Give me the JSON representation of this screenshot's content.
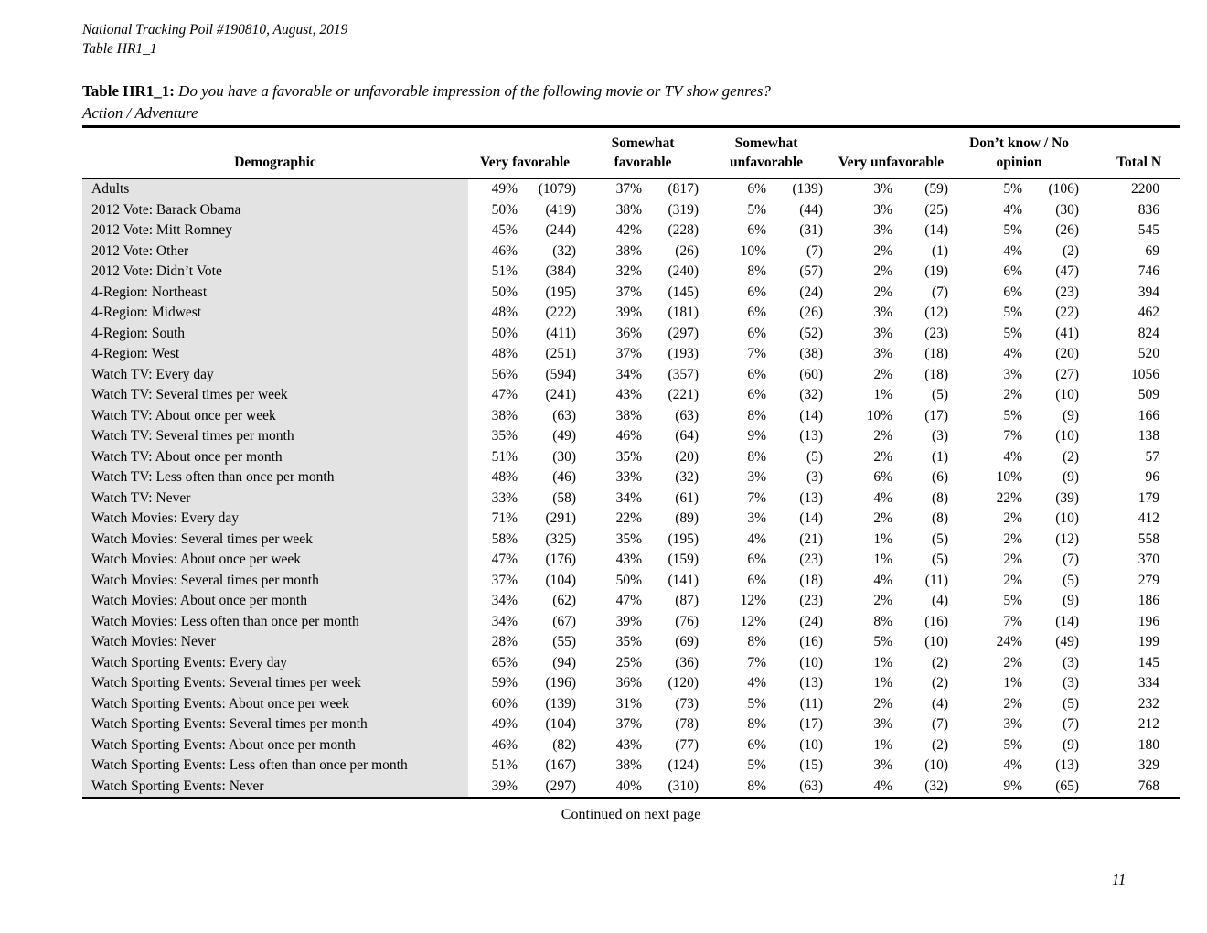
{
  "page": {
    "header_line1": "National Tracking Poll #190810, August, 2019",
    "header_line2": "Table HR1_1",
    "title_label": "Table HR1_1:",
    "title_question": "Do you have a favorable or unfavorable impression of the following movie or TV show genres?",
    "title_sub": "Action / Adventure",
    "footer_note": "Continued on next page",
    "page_number": "11"
  },
  "table": {
    "columns": [
      {
        "label": "Demographic"
      },
      {
        "label": "Very favorable"
      },
      {
        "label": "Somewhat favorable"
      },
      {
        "label": "Somewhat unfavorable"
      },
      {
        "label": "Very unfavorable"
      },
      {
        "label": "Don’t know / No opinion"
      },
      {
        "label": "Total N"
      }
    ],
    "rows": [
      {
        "label": "Adults",
        "values": [
          "49%",
          "(1079)",
          "37%",
          "(817)",
          "6%",
          "(139)",
          "3%",
          "(59)",
          "5%",
          "(106)",
          "2200"
        ]
      },
      {
        "label": "2012 Vote: Barack Obama",
        "values": [
          "50%",
          "(419)",
          "38%",
          "(319)",
          "5%",
          "(44)",
          "3%",
          "(25)",
          "4%",
          "(30)",
          "836"
        ]
      },
      {
        "label": "2012 Vote: Mitt Romney",
        "values": [
          "45%",
          "(244)",
          "42%",
          "(228)",
          "6%",
          "(31)",
          "3%",
          "(14)",
          "5%",
          "(26)",
          "545"
        ]
      },
      {
        "label": "2012 Vote: Other",
        "values": [
          "46%",
          "(32)",
          "38%",
          "(26)",
          "10%",
          "(7)",
          "2%",
          "(1)",
          "4%",
          "(2)",
          "69"
        ]
      },
      {
        "label": "2012 Vote: Didn’t Vote",
        "values": [
          "51%",
          "(384)",
          "32%",
          "(240)",
          "8%",
          "(57)",
          "2%",
          "(19)",
          "6%",
          "(47)",
          "746"
        ]
      },
      {
        "label": "4-Region: Northeast",
        "values": [
          "50%",
          "(195)",
          "37%",
          "(145)",
          "6%",
          "(24)",
          "2%",
          "(7)",
          "6%",
          "(23)",
          "394"
        ]
      },
      {
        "label": "4-Region: Midwest",
        "values": [
          "48%",
          "(222)",
          "39%",
          "(181)",
          "6%",
          "(26)",
          "3%",
          "(12)",
          "5%",
          "(22)",
          "462"
        ]
      },
      {
        "label": "4-Region: South",
        "values": [
          "50%",
          "(411)",
          "36%",
          "(297)",
          "6%",
          "(52)",
          "3%",
          "(23)",
          "5%",
          "(41)",
          "824"
        ]
      },
      {
        "label": "4-Region: West",
        "values": [
          "48%",
          "(251)",
          "37%",
          "(193)",
          "7%",
          "(38)",
          "3%",
          "(18)",
          "4%",
          "(20)",
          "520"
        ]
      },
      {
        "label": "Watch TV: Every day",
        "values": [
          "56%",
          "(594)",
          "34%",
          "(357)",
          "6%",
          "(60)",
          "2%",
          "(18)",
          "3%",
          "(27)",
          "1056"
        ]
      },
      {
        "label": "Watch TV: Several times per week",
        "values": [
          "47%",
          "(241)",
          "43%",
          "(221)",
          "6%",
          "(32)",
          "1%",
          "(5)",
          "2%",
          "(10)",
          "509"
        ]
      },
      {
        "label": "Watch TV: About once per week",
        "values": [
          "38%",
          "(63)",
          "38%",
          "(63)",
          "8%",
          "(14)",
          "10%",
          "(17)",
          "5%",
          "(9)",
          "166"
        ]
      },
      {
        "label": "Watch TV: Several times per month",
        "values": [
          "35%",
          "(49)",
          "46%",
          "(64)",
          "9%",
          "(13)",
          "2%",
          "(3)",
          "7%",
          "(10)",
          "138"
        ]
      },
      {
        "label": "Watch TV: About once per month",
        "values": [
          "51%",
          "(30)",
          "35%",
          "(20)",
          "8%",
          "(5)",
          "2%",
          "(1)",
          "4%",
          "(2)",
          "57"
        ]
      },
      {
        "label": "Watch TV: Less often than once per month",
        "values": [
          "48%",
          "(46)",
          "33%",
          "(32)",
          "3%",
          "(3)",
          "6%",
          "(6)",
          "10%",
          "(9)",
          "96"
        ]
      },
      {
        "label": "Watch TV: Never",
        "values": [
          "33%",
          "(58)",
          "34%",
          "(61)",
          "7%",
          "(13)",
          "4%",
          "(8)",
          "22%",
          "(39)",
          "179"
        ]
      },
      {
        "label": "Watch Movies: Every day",
        "values": [
          "71%",
          "(291)",
          "22%",
          "(89)",
          "3%",
          "(14)",
          "2%",
          "(8)",
          "2%",
          "(10)",
          "412"
        ]
      },
      {
        "label": "Watch Movies: Several times per week",
        "values": [
          "58%",
          "(325)",
          "35%",
          "(195)",
          "4%",
          "(21)",
          "1%",
          "(5)",
          "2%",
          "(12)",
          "558"
        ]
      },
      {
        "label": "Watch Movies: About once per week",
        "values": [
          "47%",
          "(176)",
          "43%",
          "(159)",
          "6%",
          "(23)",
          "1%",
          "(5)",
          "2%",
          "(7)",
          "370"
        ]
      },
      {
        "label": "Watch Movies: Several times per month",
        "values": [
          "37%",
          "(104)",
          "50%",
          "(141)",
          "6%",
          "(18)",
          "4%",
          "(11)",
          "2%",
          "(5)",
          "279"
        ]
      },
      {
        "label": "Watch Movies: About once per month",
        "values": [
          "34%",
          "(62)",
          "47%",
          "(87)",
          "12%",
          "(23)",
          "2%",
          "(4)",
          "5%",
          "(9)",
          "186"
        ]
      },
      {
        "label": "Watch Movies: Less often than once per month",
        "values": [
          "34%",
          "(67)",
          "39%",
          "(76)",
          "12%",
          "(24)",
          "8%",
          "(16)",
          "7%",
          "(14)",
          "196"
        ]
      },
      {
        "label": "Watch Movies: Never",
        "values": [
          "28%",
          "(55)",
          "35%",
          "(69)",
          "8%",
          "(16)",
          "5%",
          "(10)",
          "24%",
          "(49)",
          "199"
        ]
      },
      {
        "label": "Watch Sporting Events: Every day",
        "values": [
          "65%",
          "(94)",
          "25%",
          "(36)",
          "7%",
          "(10)",
          "1%",
          "(2)",
          "2%",
          "(3)",
          "145"
        ]
      },
      {
        "label": "Watch Sporting Events: Several times per week",
        "values": [
          "59%",
          "(196)",
          "36%",
          "(120)",
          "4%",
          "(13)",
          "1%",
          "(2)",
          "1%",
          "(3)",
          "334"
        ]
      },
      {
        "label": "Watch Sporting Events: About once per week",
        "values": [
          "60%",
          "(139)",
          "31%",
          "(73)",
          "5%",
          "(11)",
          "2%",
          "(4)",
          "2%",
          "(5)",
          "232"
        ]
      },
      {
        "label": "Watch Sporting Events: Several times per month",
        "values": [
          "49%",
          "(104)",
          "37%",
          "(78)",
          "8%",
          "(17)",
          "3%",
          "(7)",
          "3%",
          "(7)",
          "212"
        ]
      },
      {
        "label": "Watch Sporting Events: About once per month",
        "values": [
          "46%",
          "(82)",
          "43%",
          "(77)",
          "6%",
          "(10)",
          "1%",
          "(2)",
          "5%",
          "(9)",
          "180"
        ]
      },
      {
        "label": "Watch Sporting Events: Less often than once per month",
        "values": [
          "51%",
          "(167)",
          "38%",
          "(124)",
          "5%",
          "(15)",
          "3%",
          "(10)",
          "4%",
          "(13)",
          "329"
        ]
      },
      {
        "label": "Watch Sporting Events: Never",
        "values": [
          "39%",
          "(297)",
          "40%",
          "(310)",
          "8%",
          "(63)",
          "4%",
          "(32)",
          "9%",
          "(65)",
          "768"
        ]
      }
    ]
  },
  "colors": {
    "row_label_background": "#e3e3e3",
    "text": "#000000",
    "rule": "#000000"
  }
}
